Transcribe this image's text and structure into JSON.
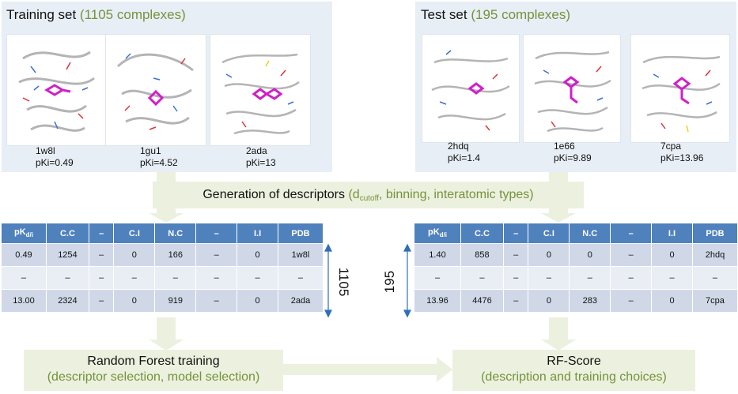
{
  "training_panel": {
    "title": "Training set",
    "count_label": "(1105 complexes)",
    "complexes": [
      {
        "pdb": "1w8l",
        "pki": "pKi=0.49"
      },
      {
        "pdb": "1gu1",
        "pki": "pKi=4.52"
      },
      {
        "pdb": "2ada",
        "pki": "pKi=13"
      }
    ]
  },
  "test_panel": {
    "title": "Test set",
    "count_label": "(195 complexes)",
    "complexes": [
      {
        "pdb": "2hdq",
        "pki": "pKi=1.4"
      },
      {
        "pdb": "1e66",
        "pki": "pKi=9.89"
      },
      {
        "pdb": "7cpa",
        "pki": "pKi=13.96"
      }
    ]
  },
  "generation": {
    "title": "Generation of descriptors",
    "details_open": "(d",
    "details_sub": "cutoff",
    "details_rest": ", binning,  interatomic types)"
  },
  "headers": {
    "pk_main": "pK",
    "pk_sub": "d/i",
    "cols": [
      "C.C",
      "–",
      "C.I",
      "N.C",
      "–",
      "I.I",
      "PDB"
    ]
  },
  "training_table": {
    "rows": [
      [
        "0.49",
        "1254",
        "–",
        "0",
        "166",
        "–",
        "0",
        "1w8l"
      ],
      [
        "–",
        "–",
        "–",
        "–",
        "–",
        "–",
        "–",
        "–"
      ],
      [
        "13.00",
        "2324",
        "–",
        "0",
        "919",
        "–",
        "0",
        "2ada"
      ]
    ],
    "count": "1105"
  },
  "test_table": {
    "rows": [
      [
        "1.40",
        "858",
        "–",
        "0",
        "0",
        "–",
        "0",
        "2hdq"
      ],
      [
        "–",
        "–",
        "–",
        "–",
        "–",
        "–",
        "–",
        "–"
      ],
      [
        "13.96",
        "4476",
        "–",
        "0",
        "283",
        "–",
        "0",
        "7cpa"
      ]
    ],
    "count": "195"
  },
  "rf_training": {
    "title": "Random Forest training",
    "subtitle": "(descriptor selection, model selection)"
  },
  "rf_score": {
    "title": "RF-Score",
    "subtitle": "(description and training  choices)"
  },
  "colors": {
    "panel_bg": "#e8eef6",
    "table_header": "#4f81bd",
    "row_dark": "#d0d8e8",
    "row_light": "#e9edf4",
    "green_box": "#ebf1de",
    "highlight_text": "#76923c",
    "count_arrow": "#2e6fb7"
  }
}
